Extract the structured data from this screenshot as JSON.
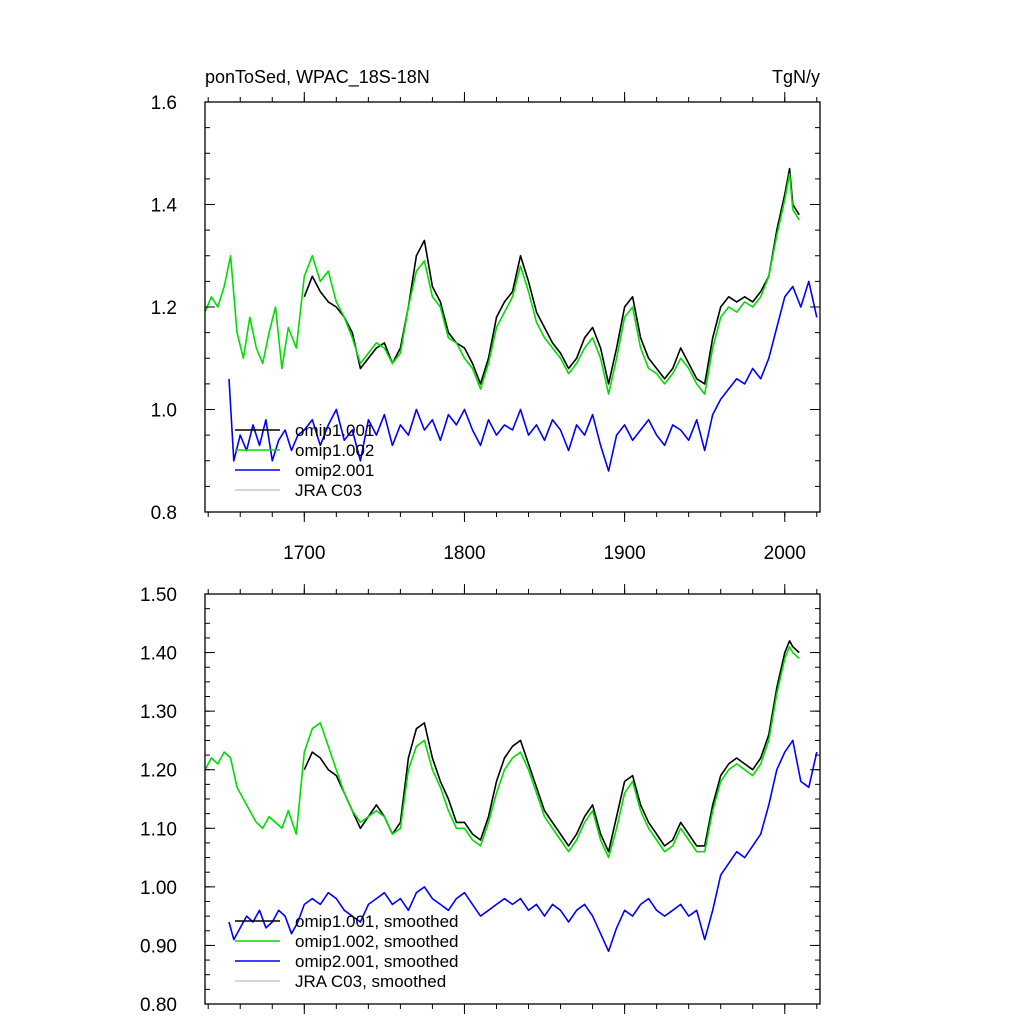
{
  "figure": {
    "background": "#ffffff"
  },
  "chart_data": [
    {
      "type": "line",
      "title_left": "ponToSed, WPAC_18S-18N",
      "title_right": "TgN/y",
      "xlabel": "",
      "ylabel": "",
      "xlim": [
        1638,
        2022
      ],
      "ylim": [
        0.8,
        1.6
      ],
      "xticks": [
        1700,
        1800,
        1900,
        2000
      ],
      "xtick_labels": [
        "1700",
        "1800",
        "1900",
        "2000"
      ],
      "yticks": [
        0.8,
        1.0,
        1.2,
        1.4,
        1.6
      ],
      "ytick_labels": [
        "0.8",
        "1.0",
        "1.2",
        "1.4",
        "1.6"
      ],
      "legend_position": "bottom-left",
      "series": [
        {
          "name": "omip1.001",
          "color": "#000000",
          "x": [
            1700,
            1705,
            1710,
            1715,
            1720,
            1725,
            1730,
            1735,
            1740,
            1745,
            1750,
            1755,
            1760,
            1765,
            1770,
            1775,
            1780,
            1785,
            1790,
            1795,
            1800,
            1805,
            1810,
            1815,
            1820,
            1825,
            1830,
            1835,
            1840,
            1845,
            1850,
            1855,
            1860,
            1865,
            1870,
            1875,
            1880,
            1885,
            1890,
            1895,
            1900,
            1905,
            1910,
            1915,
            1920,
            1925,
            1930,
            1935,
            1940,
            1945,
            1950,
            1955,
            1960,
            1965,
            1970,
            1975,
            1980,
            1985,
            1990,
            1995,
            2000,
            2003,
            2005,
            2009
          ],
          "y": [
            1.22,
            1.26,
            1.23,
            1.21,
            1.2,
            1.18,
            1.15,
            1.08,
            1.1,
            1.12,
            1.13,
            1.09,
            1.12,
            1.2,
            1.3,
            1.33,
            1.24,
            1.21,
            1.15,
            1.13,
            1.12,
            1.09,
            1.05,
            1.1,
            1.18,
            1.21,
            1.23,
            1.3,
            1.25,
            1.19,
            1.16,
            1.13,
            1.11,
            1.08,
            1.1,
            1.14,
            1.16,
            1.12,
            1.05,
            1.12,
            1.2,
            1.22,
            1.14,
            1.1,
            1.08,
            1.06,
            1.08,
            1.12,
            1.09,
            1.06,
            1.05,
            1.14,
            1.2,
            1.22,
            1.21,
            1.22,
            1.21,
            1.23,
            1.26,
            1.35,
            1.42,
            1.47,
            1.4,
            1.38
          ]
        },
        {
          "name": "omip1.002",
          "color": "#00dd00",
          "x": [
            1638,
            1642,
            1646,
            1650,
            1654,
            1658,
            1662,
            1666,
            1670,
            1674,
            1678,
            1682,
            1686,
            1690,
            1695,
            1700,
            1705,
            1710,
            1715,
            1720,
            1725,
            1730,
            1735,
            1740,
            1745,
            1750,
            1755,
            1760,
            1765,
            1770,
            1775,
            1780,
            1785,
            1790,
            1795,
            1800,
            1805,
            1810,
            1815,
            1820,
            1825,
            1830,
            1835,
            1840,
            1845,
            1850,
            1855,
            1860,
            1865,
            1870,
            1875,
            1880,
            1885,
            1890,
            1895,
            1900,
            1905,
            1910,
            1915,
            1920,
            1925,
            1930,
            1935,
            1940,
            1945,
            1950,
            1955,
            1960,
            1965,
            1970,
            1975,
            1980,
            1985,
            1990,
            1995,
            2000,
            2003,
            2005,
            2009
          ],
          "y": [
            1.19,
            1.22,
            1.2,
            1.24,
            1.3,
            1.15,
            1.1,
            1.18,
            1.12,
            1.09,
            1.15,
            1.2,
            1.08,
            1.16,
            1.12,
            1.26,
            1.3,
            1.25,
            1.27,
            1.21,
            1.18,
            1.14,
            1.09,
            1.11,
            1.13,
            1.12,
            1.09,
            1.11,
            1.2,
            1.27,
            1.29,
            1.22,
            1.2,
            1.14,
            1.13,
            1.1,
            1.08,
            1.04,
            1.09,
            1.16,
            1.19,
            1.22,
            1.28,
            1.23,
            1.17,
            1.14,
            1.12,
            1.1,
            1.07,
            1.09,
            1.12,
            1.14,
            1.1,
            1.03,
            1.1,
            1.18,
            1.2,
            1.12,
            1.08,
            1.07,
            1.05,
            1.07,
            1.1,
            1.08,
            1.05,
            1.03,
            1.12,
            1.18,
            1.2,
            1.19,
            1.21,
            1.2,
            1.22,
            1.26,
            1.34,
            1.41,
            1.46,
            1.39,
            1.37
          ]
        },
        {
          "name": "omip2.001",
          "color": "#0000ff",
          "x": [
            1653,
            1656,
            1660,
            1664,
            1668,
            1672,
            1676,
            1680,
            1684,
            1688,
            1692,
            1696,
            1700,
            1705,
            1710,
            1715,
            1720,
            1725,
            1730,
            1735,
            1740,
            1745,
            1750,
            1755,
            1760,
            1765,
            1770,
            1775,
            1780,
            1785,
            1790,
            1795,
            1800,
            1805,
            1810,
            1815,
            1820,
            1825,
            1830,
            1835,
            1840,
            1845,
            1850,
            1855,
            1860,
            1865,
            1870,
            1875,
            1880,
            1885,
            1890,
            1895,
            1900,
            1905,
            1910,
            1915,
            1920,
            1925,
            1930,
            1935,
            1940,
            1945,
            1950,
            1955,
            1960,
            1965,
            1970,
            1975,
            1980,
            1985,
            1990,
            1995,
            2000,
            2005,
            2010,
            2015,
            2020
          ],
          "y": [
            1.06,
            0.9,
            0.95,
            0.92,
            0.97,
            0.93,
            0.98,
            0.9,
            0.94,
            0.96,
            0.92,
            0.95,
            0.96,
            0.98,
            0.93,
            0.97,
            1.0,
            0.94,
            0.96,
            0.9,
            0.98,
            0.95,
            0.99,
            0.93,
            0.97,
            0.95,
            1.0,
            0.96,
            0.98,
            0.94,
            0.99,
            0.97,
            1.0,
            0.96,
            0.93,
            0.98,
            0.95,
            0.97,
            0.96,
            1.0,
            0.95,
            0.97,
            0.94,
            0.98,
            0.96,
            0.92,
            0.97,
            0.95,
            0.99,
            0.93,
            0.88,
            0.95,
            0.97,
            0.94,
            0.96,
            0.98,
            0.95,
            0.93,
            0.97,
            0.96,
            0.94,
            0.98,
            0.92,
            0.99,
            1.02,
            1.04,
            1.06,
            1.05,
            1.08,
            1.06,
            1.1,
            1.16,
            1.22,
            1.24,
            1.2,
            1.25,
            1.18
          ]
        },
        {
          "name": "JRA C03",
          "color": "#c8c8c8",
          "x": [],
          "y": []
        }
      ]
    },
    {
      "type": "line",
      "title": "",
      "xlabel": "",
      "ylabel": "",
      "xlim": [
        1638,
        2022
      ],
      "ylim": [
        0.8,
        1.5
      ],
      "xticks": [
        1700,
        1800,
        1900,
        2000
      ],
      "yticks": [
        0.8,
        0.9,
        1.0,
        1.1,
        1.2,
        1.3,
        1.4,
        1.5
      ],
      "ytick_labels": [
        "0.80",
        "0.90",
        "1.00",
        "1.10",
        "1.20",
        "1.30",
        "1.40",
        "1.50"
      ],
      "legend_position": "bottom-left",
      "series": [
        {
          "name": "omip1.001, smoothed",
          "color": "#000000",
          "x": [
            1700,
            1705,
            1710,
            1715,
            1720,
            1725,
            1730,
            1735,
            1740,
            1745,
            1750,
            1755,
            1760,
            1765,
            1770,
            1775,
            1780,
            1785,
            1790,
            1795,
            1800,
            1805,
            1810,
            1815,
            1820,
            1825,
            1830,
            1835,
            1840,
            1845,
            1850,
            1855,
            1860,
            1865,
            1870,
            1875,
            1880,
            1885,
            1890,
            1895,
            1900,
            1905,
            1910,
            1915,
            1920,
            1925,
            1930,
            1935,
            1940,
            1945,
            1950,
            1955,
            1960,
            1965,
            1970,
            1975,
            1980,
            1985,
            1990,
            1995,
            2000,
            2003,
            2005,
            2009
          ],
          "y": [
            1.2,
            1.23,
            1.22,
            1.2,
            1.19,
            1.16,
            1.13,
            1.1,
            1.12,
            1.14,
            1.12,
            1.09,
            1.11,
            1.22,
            1.27,
            1.28,
            1.22,
            1.18,
            1.15,
            1.11,
            1.11,
            1.09,
            1.08,
            1.12,
            1.18,
            1.22,
            1.24,
            1.25,
            1.21,
            1.17,
            1.13,
            1.11,
            1.09,
            1.07,
            1.09,
            1.12,
            1.14,
            1.09,
            1.06,
            1.12,
            1.18,
            1.19,
            1.14,
            1.11,
            1.09,
            1.07,
            1.08,
            1.11,
            1.09,
            1.07,
            1.07,
            1.14,
            1.19,
            1.21,
            1.22,
            1.21,
            1.2,
            1.22,
            1.26,
            1.34,
            1.4,
            1.42,
            1.41,
            1.4
          ]
        },
        {
          "name": "omip1.002, smoothed",
          "color": "#00dd00",
          "x": [
            1638,
            1642,
            1646,
            1650,
            1654,
            1658,
            1662,
            1666,
            1670,
            1674,
            1678,
            1682,
            1686,
            1690,
            1695,
            1700,
            1705,
            1710,
            1715,
            1720,
            1725,
            1730,
            1735,
            1740,
            1745,
            1750,
            1755,
            1760,
            1765,
            1770,
            1775,
            1780,
            1785,
            1790,
            1795,
            1800,
            1805,
            1810,
            1815,
            1820,
            1825,
            1830,
            1835,
            1840,
            1845,
            1850,
            1855,
            1860,
            1865,
            1870,
            1875,
            1880,
            1885,
            1890,
            1895,
            1900,
            1905,
            1910,
            1915,
            1920,
            1925,
            1930,
            1935,
            1940,
            1945,
            1950,
            1955,
            1960,
            1965,
            1970,
            1975,
            1980,
            1985,
            1990,
            1995,
            2000,
            2003,
            2005,
            2009
          ],
          "y": [
            1.2,
            1.22,
            1.21,
            1.23,
            1.22,
            1.17,
            1.15,
            1.13,
            1.11,
            1.1,
            1.12,
            1.11,
            1.1,
            1.13,
            1.09,
            1.23,
            1.27,
            1.28,
            1.24,
            1.2,
            1.16,
            1.13,
            1.11,
            1.12,
            1.13,
            1.12,
            1.09,
            1.1,
            1.2,
            1.24,
            1.25,
            1.2,
            1.17,
            1.13,
            1.1,
            1.1,
            1.08,
            1.07,
            1.11,
            1.16,
            1.2,
            1.22,
            1.23,
            1.2,
            1.16,
            1.12,
            1.1,
            1.08,
            1.06,
            1.08,
            1.11,
            1.13,
            1.08,
            1.05,
            1.1,
            1.16,
            1.18,
            1.13,
            1.1,
            1.08,
            1.06,
            1.07,
            1.1,
            1.08,
            1.06,
            1.06,
            1.13,
            1.18,
            1.2,
            1.21,
            1.2,
            1.19,
            1.21,
            1.25,
            1.33,
            1.39,
            1.41,
            1.4,
            1.39
          ]
        },
        {
          "name": "omip2.001, smoothed",
          "color": "#0000ff",
          "x": [
            1653,
            1656,
            1660,
            1664,
            1668,
            1672,
            1676,
            1680,
            1684,
            1688,
            1692,
            1696,
            1700,
            1705,
            1710,
            1715,
            1720,
            1725,
            1730,
            1735,
            1740,
            1745,
            1750,
            1755,
            1760,
            1765,
            1770,
            1775,
            1780,
            1785,
            1790,
            1795,
            1800,
            1805,
            1810,
            1815,
            1820,
            1825,
            1830,
            1835,
            1840,
            1845,
            1850,
            1855,
            1860,
            1865,
            1870,
            1875,
            1880,
            1885,
            1890,
            1895,
            1900,
            1905,
            1910,
            1915,
            1920,
            1925,
            1930,
            1935,
            1940,
            1945,
            1950,
            1955,
            1960,
            1965,
            1970,
            1975,
            1980,
            1985,
            1990,
            1995,
            2000,
            2005,
            2010,
            2015,
            2020
          ],
          "y": [
            0.94,
            0.91,
            0.93,
            0.95,
            0.94,
            0.96,
            0.93,
            0.94,
            0.96,
            0.95,
            0.92,
            0.94,
            0.97,
            0.98,
            0.97,
            0.99,
            0.98,
            0.96,
            0.95,
            0.94,
            0.97,
            0.98,
            0.99,
            0.97,
            0.98,
            0.96,
            0.99,
            1.0,
            0.98,
            0.97,
            0.96,
            0.98,
            0.99,
            0.97,
            0.95,
            0.96,
            0.97,
            0.98,
            0.97,
            0.98,
            0.96,
            0.97,
            0.95,
            0.97,
            0.96,
            0.94,
            0.96,
            0.97,
            0.95,
            0.92,
            0.89,
            0.93,
            0.96,
            0.95,
            0.97,
            0.98,
            0.96,
            0.95,
            0.96,
            0.97,
            0.95,
            0.96,
            0.91,
            0.96,
            1.02,
            1.04,
            1.06,
            1.05,
            1.07,
            1.09,
            1.14,
            1.2,
            1.23,
            1.25,
            1.18,
            1.17,
            1.23
          ]
        },
        {
          "name": "JRA C03, smoothed",
          "color": "#c8c8c8",
          "x": [],
          "y": []
        }
      ]
    }
  ]
}
